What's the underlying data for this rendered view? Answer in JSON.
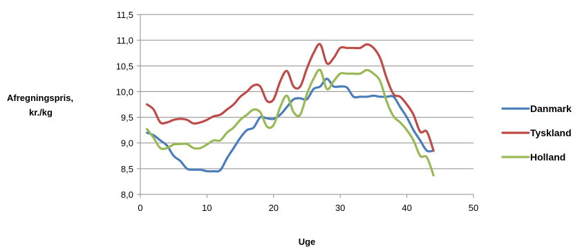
{
  "chart_data": {
    "type": "line",
    "xlabel": "Uge",
    "ylabel": [
      "Afregningspris,",
      "kr./kg"
    ],
    "xlim": [
      0,
      50
    ],
    "ylim": [
      8.0,
      11.5
    ],
    "xticks": [
      0,
      10,
      20,
      30,
      40,
      50
    ],
    "yticks": [
      8.0,
      8.5,
      9.0,
      9.5,
      10.0,
      10.5,
      11.0,
      11.5
    ],
    "ytick_labels": [
      "8,0",
      "8,5",
      "9,0",
      "9,5",
      "10,0",
      "10,5",
      "11,0",
      "11,5"
    ],
    "grid": "horizontal",
    "legend": "right",
    "series": [
      {
        "name": "Danmark",
        "color": "#4a7ebb",
        "x": [
          1,
          2,
          3,
          4,
          5,
          6,
          7,
          8,
          9,
          10,
          11,
          12,
          13,
          14,
          15,
          16,
          17,
          18,
          19,
          20,
          21,
          22,
          23,
          24,
          25,
          26,
          27,
          28,
          29,
          30,
          31,
          32,
          33,
          34,
          35,
          36,
          37,
          38,
          39,
          40,
          41,
          42,
          43,
          44
        ],
        "values": [
          9.2,
          9.15,
          9.05,
          8.95,
          8.75,
          8.65,
          8.5,
          8.48,
          8.48,
          8.45,
          8.45,
          8.47,
          8.7,
          8.9,
          9.1,
          9.25,
          9.3,
          9.5,
          9.48,
          9.47,
          9.55,
          9.7,
          9.85,
          9.87,
          9.85,
          10.05,
          10.1,
          10.25,
          10.1,
          10.1,
          10.08,
          9.9,
          9.9,
          9.9,
          9.92,
          9.9,
          9.9,
          9.9,
          9.7,
          9.5,
          9.25,
          9.05,
          8.85,
          8.85
        ]
      },
      {
        "name": "Tyskland",
        "color": "#be4b48",
        "x": [
          1,
          2,
          3,
          4,
          5,
          6,
          7,
          8,
          9,
          10,
          11,
          12,
          13,
          14,
          15,
          16,
          17,
          18,
          19,
          20,
          21,
          22,
          23,
          24,
          25,
          26,
          27,
          28,
          29,
          30,
          31,
          32,
          33,
          34,
          35,
          36,
          37,
          38,
          39,
          40,
          41,
          42,
          43,
          44
        ],
        "values": [
          9.75,
          9.65,
          9.4,
          9.4,
          9.45,
          9.47,
          9.45,
          9.38,
          9.4,
          9.45,
          9.52,
          9.55,
          9.65,
          9.75,
          9.9,
          10.0,
          10.12,
          10.1,
          9.82,
          9.85,
          10.2,
          10.4,
          10.1,
          10.1,
          10.45,
          10.75,
          10.92,
          10.55,
          10.65,
          10.85,
          10.85,
          10.85,
          10.85,
          10.92,
          10.85,
          10.65,
          10.25,
          9.95,
          9.9,
          9.75,
          9.55,
          9.22,
          9.22,
          8.85
        ]
      },
      {
        "name": "Holland",
        "color": "#98b954",
        "x": [
          1,
          2,
          3,
          4,
          5,
          6,
          7,
          8,
          9,
          10,
          11,
          12,
          13,
          14,
          15,
          16,
          17,
          18,
          19,
          20,
          21,
          22,
          23,
          24,
          25,
          26,
          27,
          28,
          29,
          30,
          31,
          32,
          33,
          34,
          35,
          36,
          37,
          38,
          39,
          40,
          41,
          42,
          43,
          44
        ],
        "values": [
          9.27,
          9.1,
          8.9,
          8.9,
          8.97,
          8.98,
          8.98,
          8.9,
          8.9,
          8.97,
          9.05,
          9.05,
          9.2,
          9.3,
          9.45,
          9.55,
          9.65,
          9.6,
          9.32,
          9.35,
          9.7,
          9.92,
          9.6,
          9.55,
          9.95,
          10.25,
          10.42,
          10.05,
          10.2,
          10.35,
          10.35,
          10.35,
          10.35,
          10.42,
          10.35,
          10.2,
          9.8,
          9.52,
          9.4,
          9.25,
          9.05,
          8.75,
          8.72,
          8.37
        ]
      }
    ]
  }
}
